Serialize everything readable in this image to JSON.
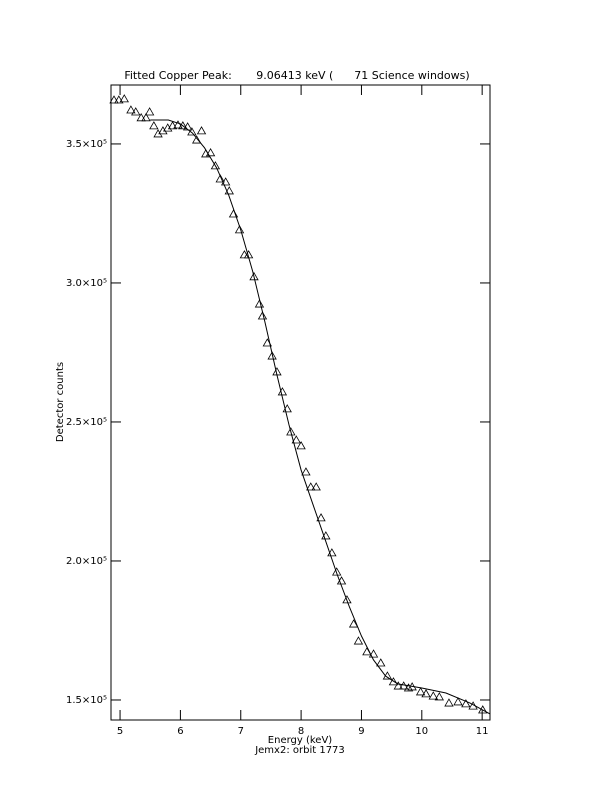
{
  "chart_data": {
    "type": "scatter",
    "title": "Fitted Copper Peak:       9.06413 keV (      71 Science windows)",
    "xlabel": "Energy (keV)",
    "ylabel": "Detector counts",
    "footer": "Jemx2: orbit 1773",
    "xlim": [
      4.85,
      11.13
    ],
    "ylim": [
      142800,
      371200
    ],
    "xticks": [
      5,
      6,
      7,
      8,
      9,
      10,
      11
    ],
    "yticks": [
      {
        "value": 150000,
        "label": "1.5×10⁵"
      },
      {
        "value": 200000,
        "label": "2.0×10⁵"
      },
      {
        "value": 250000,
        "label": "2.5×10⁵"
      },
      {
        "value": 300000,
        "label": "3.0×10⁵"
      },
      {
        "value": 350000,
        "label": "3.5×10⁵"
      }
    ],
    "series": [
      {
        "marker": "triangle",
        "color": "#000000",
        "x": [
          4.9,
          4.98,
          5.07,
          5.18,
          5.26,
          5.35,
          5.43,
          5.49,
          5.56,
          5.63,
          5.71,
          5.79,
          5.87,
          5.96,
          6.04,
          6.12,
          6.19,
          6.27,
          6.35,
          6.42,
          6.5,
          6.58,
          6.66,
          6.75,
          6.81,
          6.88,
          6.98,
          7.06,
          7.13,
          7.22,
          7.31,
          7.36,
          7.44,
          7.52,
          7.6,
          7.69,
          7.77,
          7.83,
          7.92,
          8.0,
          8.08,
          8.16,
          8.25,
          8.33,
          8.41,
          8.51,
          8.59,
          8.67,
          8.76,
          8.87,
          8.95,
          9.09,
          9.2,
          9.32,
          9.43,
          9.53,
          9.61,
          9.7,
          9.78,
          9.84,
          9.98,
          10.07,
          10.19,
          10.29,
          10.45,
          10.6,
          10.73,
          10.85,
          11.01
        ],
        "values": [
          365800,
          365800,
          366200,
          362200,
          361500,
          359400,
          359400,
          361500,
          356500,
          353600,
          354700,
          355700,
          356500,
          356800,
          356500,
          356100,
          354300,
          351400,
          354700,
          346400,
          346800,
          342100,
          337400,
          336300,
          333100,
          324800,
          319100,
          310100,
          310100,
          302200,
          292400,
          288100,
          278400,
          273700,
          268000,
          260800,
          254700,
          246400,
          243500,
          241400,
          232000,
          226600,
          226600,
          215500,
          209000,
          202900,
          196000,
          192800,
          186000,
          177300,
          171200,
          167300,
          166500,
          163300,
          158600,
          156500,
          155000,
          155000,
          154300,
          154700,
          152900,
          152200,
          151400,
          151100,
          148900,
          149300,
          148600,
          147800,
          146400
        ]
      },
      {
        "marker": "line",
        "color": "#000000",
        "x": [
          5.5,
          5.8,
          6.0,
          6.2,
          6.4,
          6.6,
          6.8,
          7.0,
          7.2,
          7.4,
          7.6,
          7.8,
          8.0,
          8.2,
          8.4,
          8.6,
          8.8,
          9.0,
          9.2,
          9.4,
          9.6,
          10.0,
          10.4,
          10.8,
          11.13
        ],
        "values": [
          358600,
          358600,
          357200,
          353900,
          348600,
          341400,
          331600,
          319100,
          304000,
          286000,
          266900,
          248900,
          232700,
          220100,
          207600,
          195000,
          183500,
          173000,
          164400,
          158600,
          155800,
          154300,
          152500,
          148900,
          145000
        ]
      }
    ]
  }
}
